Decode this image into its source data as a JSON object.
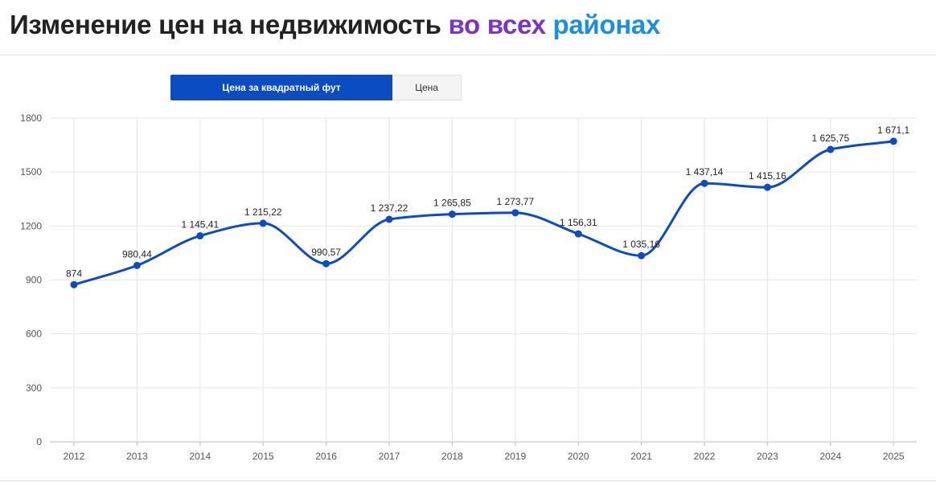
{
  "header": {
    "title_main": "Изменение цен на недвижимость",
    "title_hl1": "во всех",
    "title_hl2": "районах"
  },
  "tabs": [
    {
      "label": "Цена за квадратный фут",
      "active": true
    },
    {
      "label": "Цена",
      "active": false
    }
  ],
  "colors": {
    "line": "#0b4cc2",
    "accent": "#0b4cc2",
    "grid": "#e6e6e6"
  },
  "chart_data": {
    "type": "line",
    "title": "",
    "xlabel": "",
    "ylabel": "",
    "ylim": [
      0,
      1800
    ],
    "yticks": [
      0,
      300,
      600,
      900,
      1200,
      1500,
      1800
    ],
    "grid": true,
    "categories": [
      "2012",
      "2013",
      "2014",
      "2015",
      "2016",
      "2017",
      "2018",
      "2019",
      "2020",
      "2021",
      "2022",
      "2023",
      "2024",
      "2025"
    ],
    "series": [
      {
        "values": [
          874,
          980.44,
          1145.41,
          1215.22,
          990.57,
          1237.22,
          1265.85,
          1273.77,
          1156.31,
          1035.16,
          1437.14,
          1415.16,
          1625.75,
          1671.1
        ],
        "labels": [
          "874",
          "980,44",
          "1 145,41",
          "1 215,22",
          "990,57",
          "1 237,22",
          "1 265,85",
          "1 273,77",
          "1 156,31",
          "1 035,16",
          "1 437,14",
          "1 415,16",
          "1 625,75",
          "1 671,1"
        ]
      }
    ]
  }
}
